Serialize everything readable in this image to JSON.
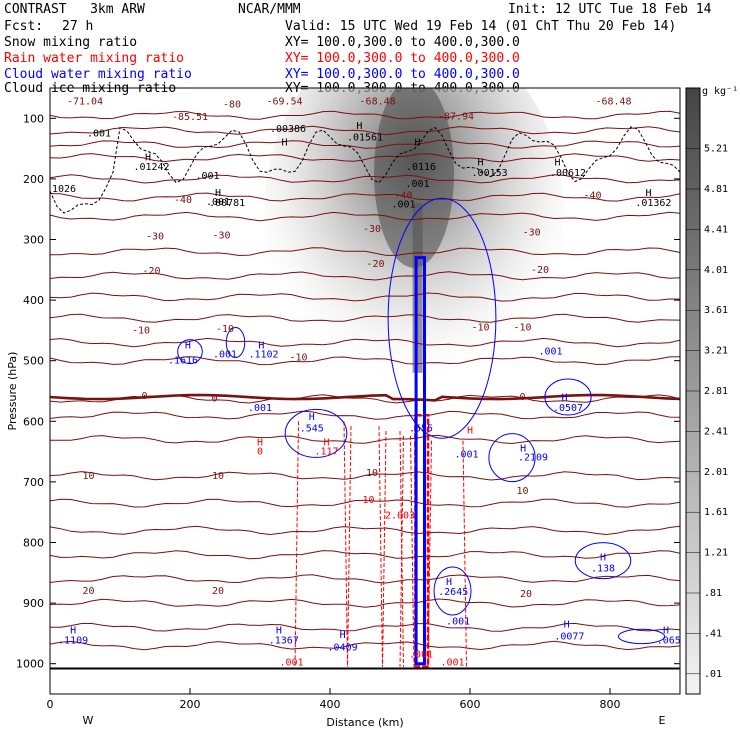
{
  "header": {
    "model": "CONTRAST   3km ARW",
    "center": "NCAR/MMM",
    "init": "Init: 12 UTC Tue 18 Feb 14",
    "fcst_label": "Fcst:",
    "fcst_value": "27 h",
    "valid": "Valid: 15 UTC Wed 19 Feb 14 (01 ChT Thu 20 Feb 14)"
  },
  "fields": [
    {
      "name": "Snow mixing ratio",
      "xy": "XY= 100.0,300.0 to 400.0,300.0",
      "color": "#000000"
    },
    {
      "name": "Rain water mixing ratio",
      "xy": "XY= 100.0,300.0 to 400.0,300.0",
      "color": "#ff0000"
    },
    {
      "name": "Cloud water mixing ratio",
      "xy": "XY= 100.0,300.0 to 400.0,300.0",
      "color": "#0000ff"
    },
    {
      "name": "Cloud ice mixing ratio",
      "xy": "XY= 100.0,300.0 to 400.0,300.0",
      "color": "#000000"
    }
  ],
  "chart_data": {
    "type": "cross-section",
    "xlabel": "Distance (km)",
    "ylabel": "Pressure (hPa)",
    "xlim": [
      0,
      900
    ],
    "ylim": [
      1050,
      50
    ],
    "xticks": [
      "0",
      "200",
      "400",
      "600",
      "800"
    ],
    "xtick_values": [
      0,
      200,
      400,
      600,
      800
    ],
    "yticks": [
      "100",
      "200",
      "300",
      "400",
      "500",
      "600",
      "700",
      "800",
      "900",
      "1000"
    ],
    "ytick_values": [
      100,
      200,
      300,
      400,
      500,
      600,
      700,
      800,
      900,
      1000
    ],
    "west_label": "W",
    "east_label": "E",
    "colorbar": {
      "unit": "g kg⁻¹",
      "levels": [
        "5.21",
        "4.81",
        "4.41",
        "4.01",
        "3.61",
        "3.21",
        "2.81",
        "2.41",
        "2.01",
        "1.61",
        "1.21",
        ".81",
        ".41",
        ".01"
      ],
      "level_values": [
        5.21,
        4.81,
        4.41,
        4.01,
        3.61,
        3.21,
        2.81,
        2.41,
        2.01,
        1.61,
        1.21,
        0.81,
        0.41,
        0.01
      ],
      "high_color": "#444444",
      "low_color": "#f0f0f0"
    },
    "temperature_contours": {
      "color": "#7a1010",
      "levels": [
        -80,
        -70,
        -60,
        -50,
        -40,
        -30,
        -20,
        -10,
        0,
        10,
        20
      ],
      "pressures": [
        95,
        120,
        143,
        165,
        200,
        230,
        262,
        320,
        360,
        395,
        430,
        470,
        500,
        563,
        590,
        630,
        690,
        735,
        780,
        820,
        860,
        900,
        940,
        970
      ],
      "zero_pressure": 560,
      "labels": [
        {
          "text": "-71.04",
          "x": 50,
          "p": 77
        },
        {
          "text": "-80",
          "x": 260,
          "p": 82
        },
        {
          "text": "-69.54",
          "x": 335,
          "p": 77
        },
        {
          "text": "-68.48",
          "x": 468,
          "p": 77
        },
        {
          "text": "-68.48",
          "x": 805,
          "p": 77
        },
        {
          "text": "-85.51",
          "x": 200,
          "p": 103
        },
        {
          "text": "-87.94",
          "x": 580,
          "p": 102
        },
        {
          "text": "-40",
          "x": 190,
          "p": 240
        },
        {
          "text": "-40",
          "x": 505,
          "p": 232
        },
        {
          "text": "-40",
          "x": 775,
          "p": 232
        },
        {
          "text": "-30",
          "x": 150,
          "p": 300
        },
        {
          "text": "-30",
          "x": 245,
          "p": 298
        },
        {
          "text": "-30",
          "x": 460,
          "p": 288
        },
        {
          "text": "-30",
          "x": 688,
          "p": 293
        },
        {
          "text": "-20",
          "x": 145,
          "p": 357
        },
        {
          "text": "-20",
          "x": 465,
          "p": 345
        },
        {
          "text": "-20",
          "x": 700,
          "p": 355
        },
        {
          "text": "-10",
          "x": 130,
          "p": 455
        },
        {
          "text": "-10",
          "x": 250,
          "p": 453
        },
        {
          "text": "-10",
          "x": 615,
          "p": 450
        },
        {
          "text": "-10",
          "x": 675,
          "p": 450
        },
        {
          "text": "-10",
          "x": 355,
          "p": 500
        },
        {
          "text": "0",
          "x": 135,
          "p": 563
        },
        {
          "text": "0",
          "x": 235,
          "p": 567
        },
        {
          "text": "0",
          "x": 675,
          "p": 565
        },
        {
          "text": "10",
          "x": 55,
          "p": 695
        },
        {
          "text": "10",
          "x": 240,
          "p": 695
        },
        {
          "text": "10",
          "x": 460,
          "p": 690
        },
        {
          "text": "10",
          "x": 675,
          "p": 720
        },
        {
          "text": "20",
          "x": 55,
          "p": 885
        },
        {
          "text": "20",
          "x": 240,
          "p": 885
        },
        {
          "text": "20",
          "x": 680,
          "p": 890
        }
      ]
    },
    "rain_water": {
      "color": "#ff0000",
      "labels": [
        {
          "text": "H",
          "x": 300,
          "p": 640
        },
        {
          "text": "0",
          "x": 300,
          "p": 655
        },
        {
          "text": "H",
          "x": 395,
          "p": 640
        },
        {
          "text": ".117",
          "x": 395,
          "p": 655
        },
        {
          "text": "10",
          "x": 455,
          "p": 735
        },
        {
          "text": "2.003",
          "x": 500,
          "p": 760
        },
        {
          "text": ".001",
          "x": 345,
          "p": 1003
        },
        {
          "text": ".001",
          "x": 575,
          "p": 1003
        },
        {
          "text": "H",
          "x": 600,
          "p": 620
        },
        {
          "text": ".001",
          "x": 530,
          "p": 990
        }
      ]
    },
    "cloud_water": {
      "color": "#0000ff",
      "labels": [
        {
          "text": "H",
          "x": 197,
          "p": 480
        },
        {
          "text": ".1616",
          "x": 190,
          "p": 505
        },
        {
          "text": ".001",
          "x": 250,
          "p": 495
        },
        {
          "text": "H",
          "x": 302,
          "p": 480
        },
        {
          "text": ".1102",
          "x": 305,
          "p": 495
        },
        {
          "text": ".001",
          "x": 300,
          "p": 583
        },
        {
          "text": "H",
          "x": 374,
          "p": 598
        },
        {
          "text": ".545",
          "x": 374,
          "p": 617
        },
        {
          "text": ".555",
          "x": 530,
          "p": 617
        },
        {
          "text": ".001",
          "x": 715,
          "p": 490
        },
        {
          "text": "H",
          "x": 735,
          "p": 566
        },
        {
          "text": ".0507",
          "x": 740,
          "p": 583
        },
        {
          "text": ".001",
          "x": 595,
          "p": 660
        },
        {
          "text": "H",
          "x": 676,
          "p": 650
        },
        {
          "text": ".2109",
          "x": 690,
          "p": 665
        },
        {
          "text": "H",
          "x": 790,
          "p": 830
        },
        {
          "text": ".138",
          "x": 790,
          "p": 848
        },
        {
          "text": "H",
          "x": 570,
          "p": 870
        },
        {
          "text": ".2645",
          "x": 576,
          "p": 887
        },
        {
          "text": ".001",
          "x": 583,
          "p": 935
        },
        {
          "text": "H",
          "x": 33,
          "p": 950
        },
        {
          "text": ".1109",
          "x": 33,
          "p": 967
        },
        {
          "text": "H",
          "x": 327,
          "p": 950
        },
        {
          "text": ".1367",
          "x": 334,
          "p": 967
        },
        {
          "text": "H",
          "x": 418,
          "p": 958
        },
        {
          "text": ".0409",
          "x": 418,
          "p": 978
        },
        {
          "text": "H",
          "x": 738,
          "p": 940
        },
        {
          "text": ".0077",
          "x": 742,
          "p": 960
        },
        {
          "text": "H",
          "x": 880,
          "p": 950
        },
        {
          "text": ".065",
          "x": 884,
          "p": 967
        }
      ]
    },
    "cloud_ice": {
      "color": "#000000",
      "labels": [
        {
          "text": ".001",
          "x": 70,
          "p": 130
        },
        {
          "text": "H",
          "x": 335,
          "p": 145
        },
        {
          "text": ".00386",
          "x": 340,
          "p": 123
        },
        {
          "text": "H",
          "x": 140,
          "p": 170
        },
        {
          "text": ".01242",
          "x": 145,
          "p": 185
        },
        {
          "text": "H",
          "x": 442,
          "p": 118
        },
        {
          "text": ".01561",
          "x": 450,
          "p": 137
        },
        {
          "text": "H",
          "x": 525,
          "p": 145
        },
        {
          "text": ".0116",
          "x": 530,
          "p": 185
        },
        {
          "text": ".001",
          "x": 225,
          "p": 200
        },
        {
          "text": ".001",
          "x": 525,
          "p": 213
        },
        {
          "text": ".001",
          "x": 505,
          "p": 247
        },
        {
          "text": ".001",
          "x": 240,
          "p": 243
        },
        {
          "text": "H",
          "x": 615,
          "p": 178
        },
        {
          "text": ".00153",
          "x": 628,
          "p": 195
        },
        {
          "text": "H",
          "x": 725,
          "p": 178
        },
        {
          "text": ".00612",
          "x": 740,
          "p": 195
        },
        {
          "text": "H",
          "x": 855,
          "p": 228
        },
        {
          "text": ".01362",
          "x": 862,
          "p": 245
        },
        {
          "text": "1026",
          "x": 20,
          "p": 222
        },
        {
          "text": "H",
          "x": 240,
          "p": 228
        },
        {
          "text": ".00781",
          "x": 253,
          "p": 245
        }
      ]
    }
  }
}
